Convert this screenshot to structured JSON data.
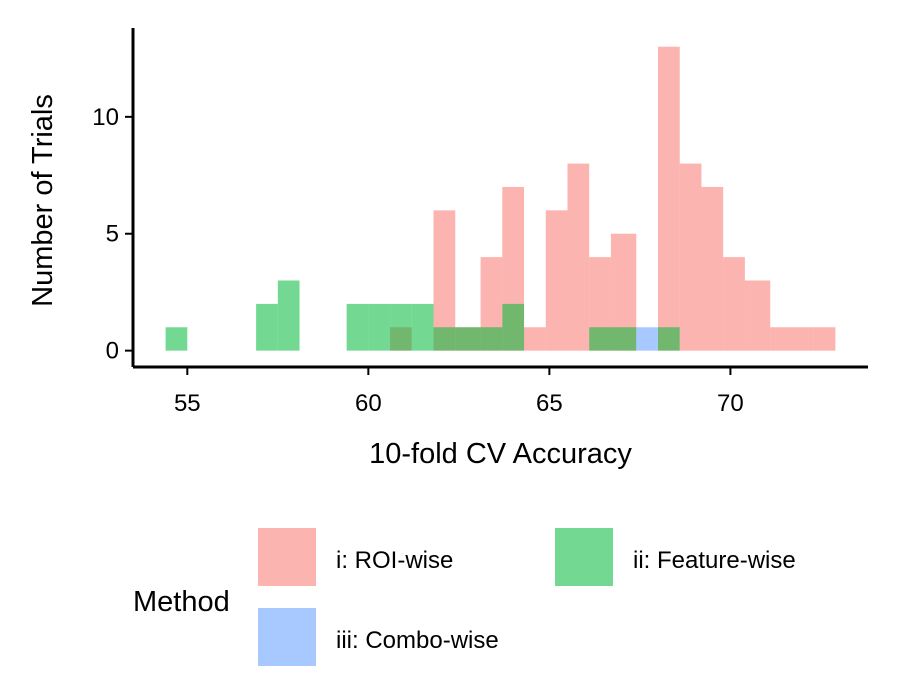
{
  "chart_data": {
    "type": "bar",
    "subtype": "histogram",
    "title": "",
    "xlabel": "10-fold CV Accuracy",
    "ylabel": "Number of Trials",
    "xlim": [
      53.5,
      73.8
    ],
    "ylim": [
      -0.7,
      13.8
    ],
    "xticks": [
      55,
      60,
      65,
      70
    ],
    "yticks": [
      0,
      5,
      10
    ],
    "grid": false,
    "bin_width": 0.62,
    "legend": {
      "title": "Method",
      "placement": "bottom",
      "entries": [
        "i: ROI-wise",
        "ii: Feature-wise",
        "iii: Combo-wise"
      ]
    },
    "colors": {
      "i: ROI-wise": "#f8766d",
      "ii: Feature-wise": "#00ba38",
      "iii: Combo-wise": "#619cff",
      "bar_opacity": 0.55
    },
    "series": [
      {
        "name": "i: ROI-wise",
        "bins": [
          {
            "x0": 60.6,
            "x1": 61.2,
            "count": 1
          },
          {
            "x0": 61.8,
            "x1": 62.4,
            "count": 6
          },
          {
            "x0": 62.4,
            "x1": 63.1,
            "count": 1
          },
          {
            "x0": 63.1,
            "x1": 63.7,
            "count": 4
          },
          {
            "x0": 63.7,
            "x1": 64.3,
            "count": 7
          },
          {
            "x0": 64.3,
            "x1": 64.9,
            "count": 1
          },
          {
            "x0": 64.9,
            "x1": 65.5,
            "count": 6
          },
          {
            "x0": 65.5,
            "x1": 66.1,
            "count": 8
          },
          {
            "x0": 66.1,
            "x1": 66.7,
            "count": 4
          },
          {
            "x0": 66.7,
            "x1": 67.4,
            "count": 5
          },
          {
            "x0": 68.0,
            "x1": 68.6,
            "count": 13
          },
          {
            "x0": 68.6,
            "x1": 69.2,
            "count": 8
          },
          {
            "x0": 69.2,
            "x1": 69.8,
            "count": 7
          },
          {
            "x0": 69.8,
            "x1": 70.4,
            "count": 4
          },
          {
            "x0": 70.4,
            "x1": 71.1,
            "count": 3
          },
          {
            "x0": 71.1,
            "x1": 71.7,
            "count": 1
          },
          {
            "x0": 71.7,
            "x1": 72.3,
            "count": 1
          },
          {
            "x0": 72.3,
            "x1": 72.9,
            "count": 1
          }
        ]
      },
      {
        "name": "ii: Feature-wise",
        "bins": [
          {
            "x0": 54.4,
            "x1": 55.0,
            "count": 1
          },
          {
            "x0": 56.9,
            "x1": 57.5,
            "count": 2
          },
          {
            "x0": 57.5,
            "x1": 58.1,
            "count": 3
          },
          {
            "x0": 59.4,
            "x1": 60.0,
            "count": 2
          },
          {
            "x0": 60.0,
            "x1": 60.6,
            "count": 2
          },
          {
            "x0": 60.6,
            "x1": 61.2,
            "count": 2
          },
          {
            "x0": 61.2,
            "x1": 61.8,
            "count": 2
          },
          {
            "x0": 61.8,
            "x1": 62.4,
            "count": 1
          },
          {
            "x0": 62.4,
            "x1": 63.1,
            "count": 1
          },
          {
            "x0": 63.1,
            "x1": 63.7,
            "count": 1
          },
          {
            "x0": 63.7,
            "x1": 64.3,
            "count": 2
          },
          {
            "x0": 66.1,
            "x1": 66.7,
            "count": 1
          },
          {
            "x0": 66.7,
            "x1": 67.4,
            "count": 1
          },
          {
            "x0": 68.0,
            "x1": 68.6,
            "count": 1
          }
        ]
      },
      {
        "name": "iii: Combo-wise",
        "bins": [
          {
            "x0": 67.4,
            "x1": 68.0,
            "count": 1
          }
        ]
      }
    ]
  }
}
